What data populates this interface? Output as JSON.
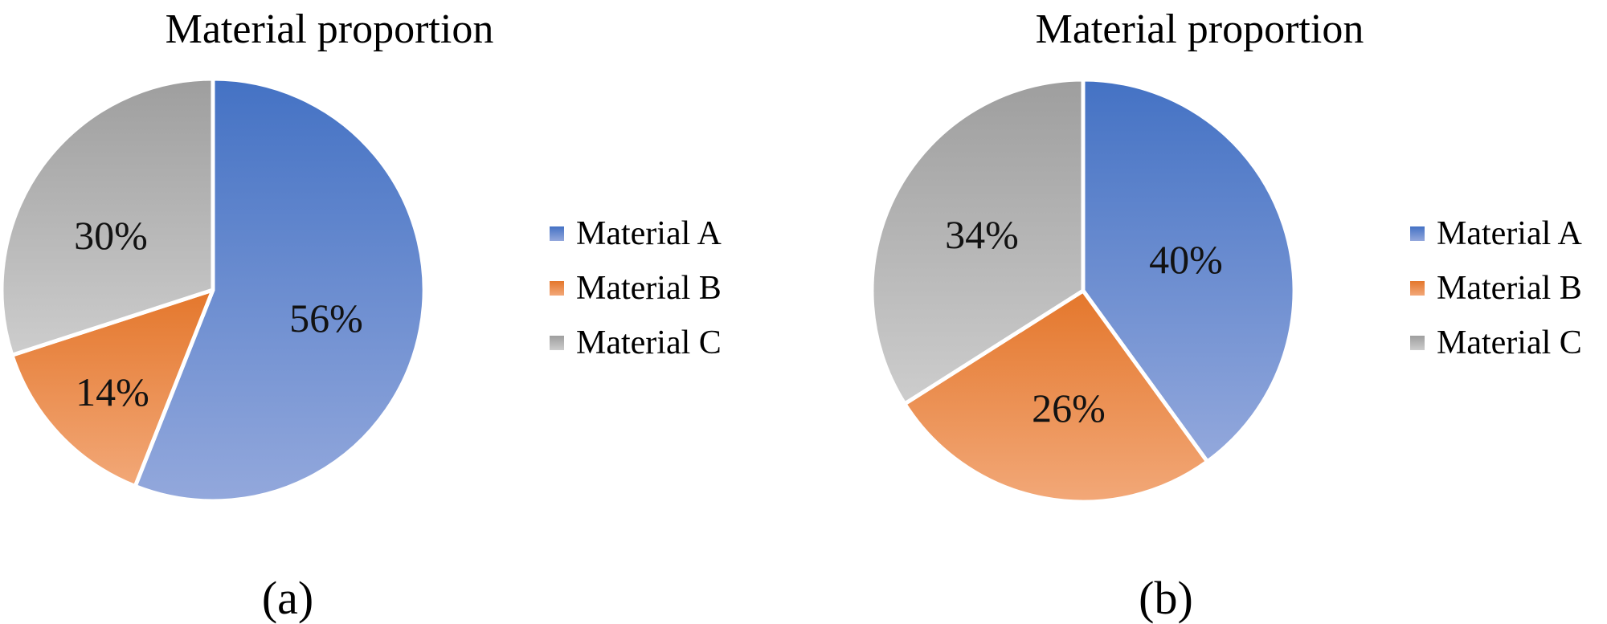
{
  "chart_data": [
    {
      "type": "pie",
      "title": "Material proportion",
      "labels": [
        "Material A",
        "Material B",
        "Material C"
      ],
      "values": [
        56,
        14,
        30
      ],
      "pct_labels": [
        "56%",
        "14%",
        "30%"
      ],
      "caption": "(a)",
      "legend_position": "right",
      "start_angle_deg": 0,
      "direction": "clockwise"
    },
    {
      "type": "pie",
      "title": "Material proportion",
      "labels": [
        "Material A",
        "Material B",
        "Material C"
      ],
      "values": [
        40,
        26,
        34
      ],
      "pct_labels": [
        "40%",
        "26%",
        "34%"
      ],
      "caption": "(b)",
      "legend_position": "right",
      "start_angle_deg": 0,
      "direction": "clockwise"
    }
  ],
  "colors": {
    "slice_gradients": [
      [
        "#4472C4",
        "#93A8DC"
      ],
      [
        "#E4772C",
        "#F2A878"
      ],
      [
        "#9E9E9E",
        "#CDCDCD"
      ]
    ],
    "slice_border": "#FFFFFF",
    "title_text": "#000000",
    "label_text": "#121212",
    "background": "#FFFFFF"
  }
}
